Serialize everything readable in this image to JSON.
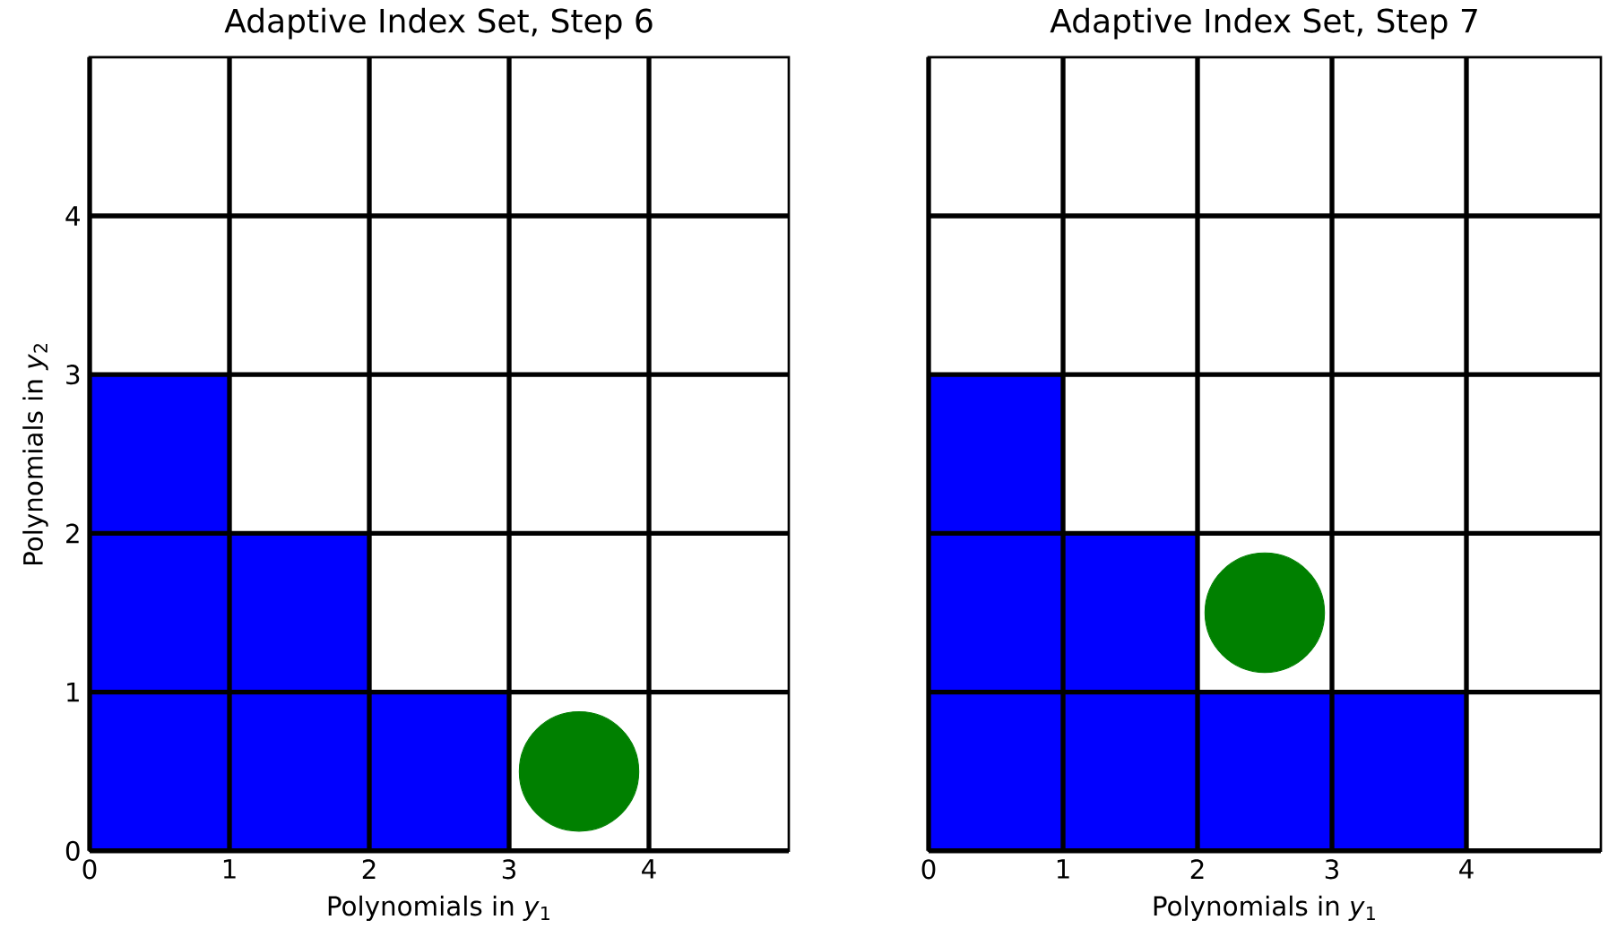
{
  "chart_data": [
    {
      "type": "bar",
      "title": "Adaptive Index Set, Step 6",
      "xlabel": "Polynomials in *y*$_{1}$",
      "ylabel": "Polynomials in *y*$_{2}$",
      "series": [
        {
          "color": "#0000ff",
          "x": [
            0.5,
            1.5,
            2.5
          ],
          "values": [
            3,
            2,
            1
          ]
        },
        {
          "type": "scatter",
          "color": "#008000",
          "x": [
            3.5
          ],
          "values": [
            0.5
          ]
        }
      ],
      "xlim": [
        0,
        5
      ],
      "ylim": [
        0,
        5
      ],
      "xticks": [
        0,
        1,
        2,
        3,
        4
      ],
      "yticks": [
        0,
        1,
        2,
        3,
        4
      ],
      "grid": true
    },
    {
      "type": "bar",
      "title": "Adaptive Index Set, Step 7",
      "xlabel": "Polynomials in *y*$_{1}$",
      "series": [
        {
          "color": "#0000ff",
          "x": [
            0.5,
            1.5,
            2.5,
            3.5
          ],
          "values": [
            3,
            2,
            1,
            1
          ]
        },
        {
          "type": "scatter",
          "color": "#008000",
          "x": [
            2.5
          ],
          "values": [
            1.5
          ]
        }
      ],
      "xlim": [
        0,
        5
      ],
      "ylim": [
        0,
        5
      ],
      "xticks": [
        0,
        1,
        2,
        3,
        4
      ],
      "yticks": [
        0,
        1,
        2,
        3,
        4
      ],
      "grid": true,
      "tick_labels": "x"
    }
  ]
}
